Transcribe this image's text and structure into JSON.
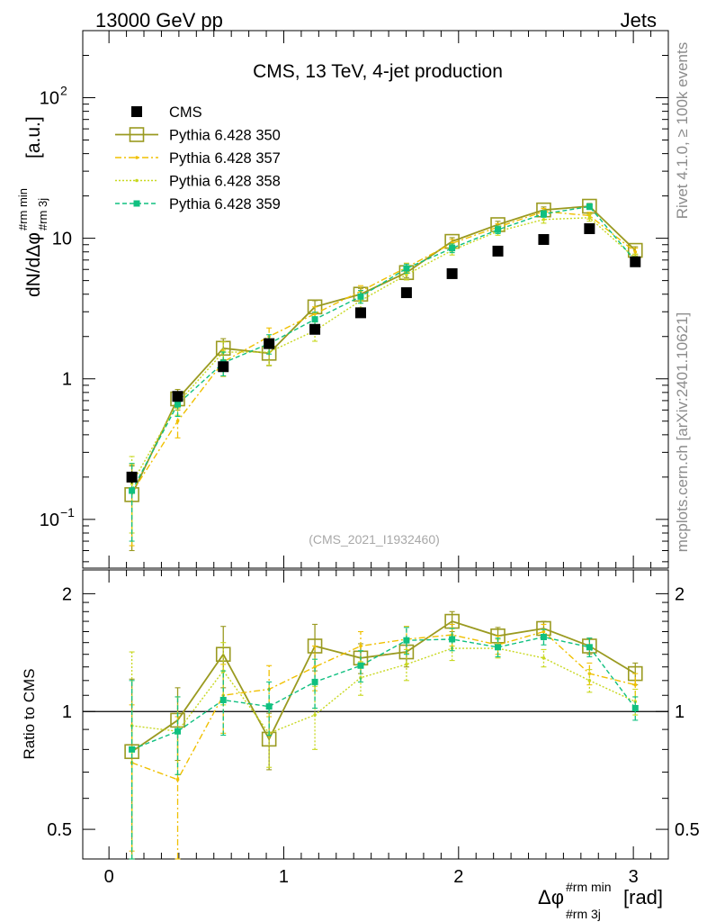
{
  "header": {
    "left": "13000 GeV pp",
    "right": "Jets"
  },
  "side": {
    "rivet": "Rivet 4.1.0, ≥ 100k events",
    "mcplots": "mcplots.cern.ch [arXiv:2401.10621]"
  },
  "colors": {
    "cms": "#000000",
    "p350": "#9a9a20",
    "p357": "#f0c000",
    "p358": "#c8d820",
    "p359": "#10c080",
    "ref": "#000000"
  },
  "chart_data": {
    "type": "line",
    "title": "CMS, 13 TeV, 4-jet production",
    "watermark": "(CMS_2021_I1932460)",
    "x": [
      0.131,
      0.393,
      0.654,
      0.916,
      1.178,
      1.44,
      1.702,
      1.963,
      2.225,
      2.487,
      2.749,
      3.011
    ],
    "xlim": [
      -0.15,
      3.2
    ],
    "xticks": [
      "0",
      "1",
      "2",
      "3"
    ],
    "xlabel_main": "Δφ",
    "xlabel_sup": "#rm min",
    "xlabel_sub": "#rm 3j",
    "xlabel_unit": "[rad]",
    "top": {
      "ylabel_main": "dN/dΔφ",
      "ylabel_sup": "#rm min",
      "ylabel_sub": "#rm 3j",
      "ylabel_unit": "[a.u.]",
      "ylim": [
        0.045,
        300
      ],
      "ytick_labels": [
        {
          "value": 0.1,
          "base": "10",
          "exp": "−1"
        },
        {
          "value": 1,
          "base": "1",
          "exp": ""
        },
        {
          "value": 10,
          "base": "10",
          "exp": ""
        },
        {
          "value": 100,
          "base": "10",
          "exp": "2"
        }
      ],
      "cms": {
        "name": "CMS",
        "values": [
          0.2,
          0.75,
          1.22,
          1.78,
          2.25,
          2.95,
          4.1,
          5.6,
          8.1,
          9.8,
          11.7,
          6.8
        ],
        "errors": [
          0.02,
          0.05,
          0.06,
          0.08,
          0.1,
          0.1,
          0.12,
          0.15,
          0.2,
          0.22,
          0.25,
          0.18
        ]
      },
      "series": [
        {
          "name": "Pythia 6.428 350",
          "key": "p350",
          "style": "solid",
          "marker": "open-square",
          "values": [
            0.15,
            0.72,
            1.65,
            1.52,
            3.25,
            4.0,
            5.7,
            9.5,
            12.5,
            15.9,
            16.9,
            8.2
          ],
          "errors": [
            0.09,
            0.12,
            0.28,
            0.28,
            0.35,
            0.4,
            0.45,
            0.6,
            0.7,
            0.8,
            0.8,
            0.5
          ]
        },
        {
          "name": "Pythia 6.428 357",
          "key": "p357",
          "style": "dashdot",
          "marker": "small-dot",
          "values": [
            0.155,
            0.5,
            1.32,
            2.0,
            2.9,
            4.2,
            6.2,
            9.2,
            12.0,
            15.5,
            14.5,
            8.0
          ],
          "errors": [
            0.09,
            0.12,
            0.28,
            0.3,
            0.35,
            0.4,
            0.45,
            0.6,
            0.7,
            0.8,
            0.8,
            0.5
          ]
        },
        {
          "name": "Pythia 6.428 358",
          "key": "p358",
          "style": "dotted",
          "marker": "small-dot",
          "values": [
            0.18,
            0.67,
            1.55,
            1.55,
            2.2,
            3.6,
            5.5,
            8.2,
            11.2,
            13.6,
            14.0,
            7.2
          ],
          "errors": [
            0.1,
            0.12,
            0.28,
            0.3,
            0.35,
            0.4,
            0.45,
            0.6,
            0.7,
            0.8,
            0.8,
            0.5
          ]
        },
        {
          "name": "Pythia 6.428 359",
          "key": "p359",
          "style": "dashed",
          "marker": "filled-square",
          "values": [
            0.16,
            0.66,
            1.3,
            1.78,
            2.65,
            3.85,
            6.1,
            8.5,
            11.5,
            14.9,
            16.8,
            6.9
          ],
          "errors": [
            0.09,
            0.12,
            0.25,
            0.28,
            0.33,
            0.4,
            0.45,
            0.6,
            0.7,
            0.8,
            0.8,
            0.5
          ]
        }
      ]
    },
    "ratio": {
      "ylabel": "Ratio to CMS",
      "ylim": [
        0.42,
        2.3
      ],
      "ytick_labels": [
        {
          "value": 0.5,
          "label": "0.5"
        },
        {
          "value": 1,
          "label": "1"
        },
        {
          "value": 2,
          "label": "2"
        }
      ],
      "reference": 1,
      "series": [
        {
          "key": "p350",
          "values": [
            0.79,
            0.95,
            1.4,
            0.85,
            1.47,
            1.37,
            1.42,
            1.7,
            1.56,
            1.63,
            1.47,
            1.25
          ],
          "errors": [
            0.42,
            0.2,
            0.25,
            0.14,
            0.2,
            0.12,
            0.12,
            0.1,
            0.08,
            0.07,
            0.07,
            0.08
          ]
        },
        {
          "key": "p357",
          "values": [
            0.74,
            0.67,
            1.1,
            1.14,
            1.3,
            1.47,
            1.53,
            1.57,
            1.48,
            1.6,
            1.25,
            1.17
          ],
          "errors": [
            0.3,
            0.3,
            0.22,
            0.17,
            0.17,
            0.13,
            0.12,
            0.1,
            0.08,
            0.07,
            0.08,
            0.08
          ]
        },
        {
          "key": "p358",
          "values": [
            0.92,
            0.89,
            1.27,
            0.88,
            0.98,
            1.22,
            1.32,
            1.45,
            1.45,
            1.37,
            1.2,
            1.06
          ],
          "errors": [
            0.5,
            0.2,
            0.23,
            0.16,
            0.18,
            0.12,
            0.12,
            0.1,
            0.08,
            0.07,
            0.08,
            0.08
          ]
        },
        {
          "key": "p359",
          "values": [
            0.8,
            0.89,
            1.07,
            1.03,
            1.19,
            1.31,
            1.52,
            1.53,
            1.46,
            1.55,
            1.46,
            1.02
          ],
          "errors": [
            0.4,
            0.2,
            0.2,
            0.16,
            0.17,
            0.12,
            0.12,
            0.1,
            0.08,
            0.07,
            0.08,
            0.07
          ]
        }
      ]
    }
  }
}
